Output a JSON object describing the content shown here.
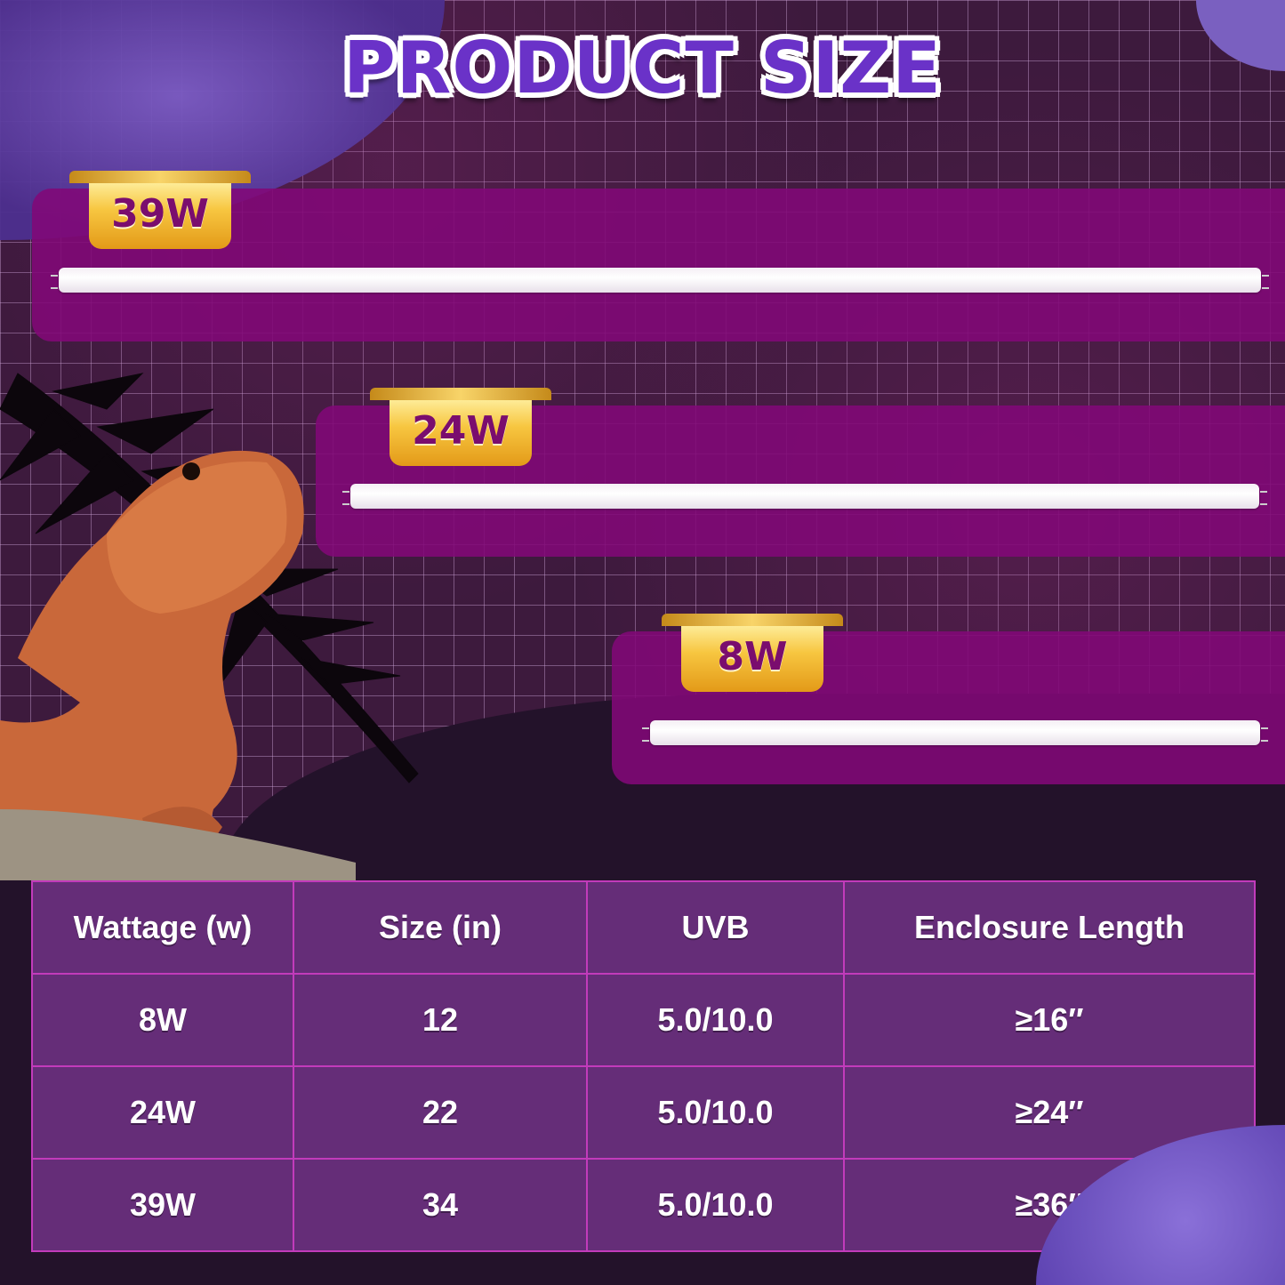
{
  "title": "PRODUCT SIZE",
  "bulbs": [
    {
      "label": "39W"
    },
    {
      "label": "24W"
    },
    {
      "label": "8W"
    }
  ],
  "table": {
    "headers": [
      "Wattage (w)",
      "Size (in)",
      "UVB",
      "Enclosure Length"
    ],
    "rows": [
      [
        "8W",
        "12",
        "5.0/10.0",
        "≥16″"
      ],
      [
        "24W",
        "22",
        "5.0/10.0",
        "≥24″"
      ],
      [
        "39W",
        "34",
        "5.0/10.0",
        "≥36″"
      ]
    ]
  },
  "colors": {
    "panel": "#820878",
    "table_cell": "#652d78",
    "table_border": "#c23bbb",
    "title": "#6a32c8",
    "badge": "#f7c640"
  }
}
